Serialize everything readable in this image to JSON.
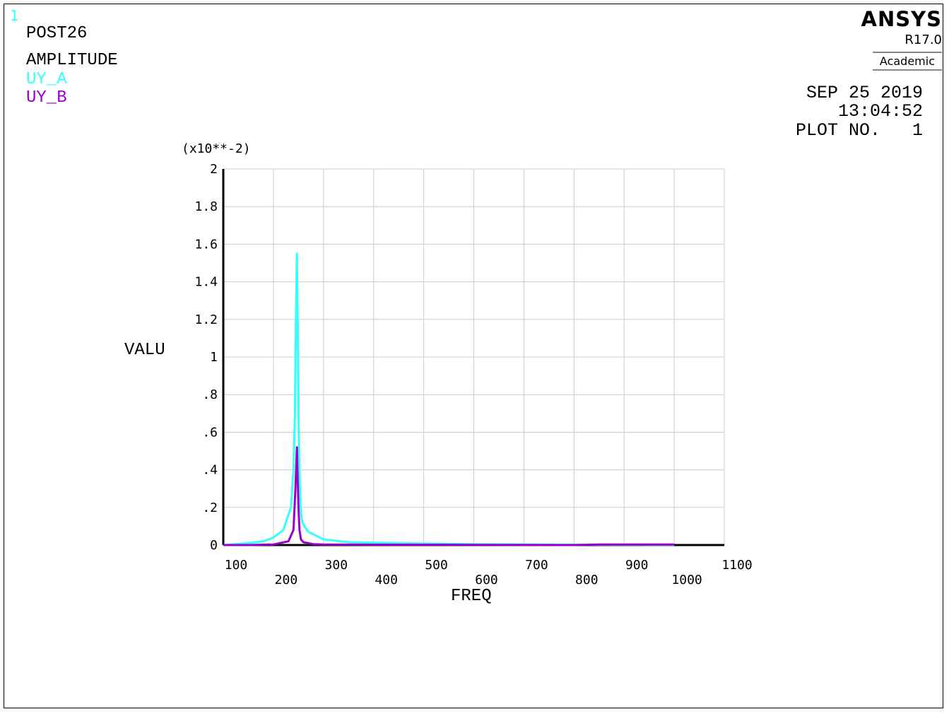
{
  "window": {
    "number": "1"
  },
  "header": {
    "processor": "POST26",
    "variable_type": "AMPLITUDE"
  },
  "brand": {
    "name": "ANSYS",
    "release": "R17.0",
    "edition": "Academic"
  },
  "stamp": {
    "date": "SEP 25 2019",
    "time": "13:04:52",
    "plot_no": "PLOT NO.   1"
  },
  "colors": {
    "series_a": "#33ffff",
    "series_b": "#9900cc",
    "grid": "#cccccc",
    "axis": "#000000"
  },
  "chart_data": {
    "type": "line",
    "multiplier": "(x10**-2)",
    "xlabel": "FREQ",
    "ylabel": "VALU",
    "xlim": [
      100,
      1100
    ],
    "ylim": [
      0,
      2
    ],
    "grid": true,
    "x_ticks": [
      "100",
      "200",
      "300",
      "400",
      "500",
      "600",
      "700",
      "800",
      "900",
      "1000",
      "1100"
    ],
    "y_ticks": [
      "0",
      ".2",
      ".4",
      ".6",
      ".8",
      "1",
      "1.2",
      "1.4",
      "1.6",
      "1.8",
      "2"
    ],
    "series": [
      {
        "name": "UY_A",
        "color": "#33ffff",
        "x": [
          100,
          150,
          180,
          200,
          220,
          235,
          240,
          243,
          245,
          247,
          249,
          250,
          252,
          254,
          256,
          258,
          262,
          270,
          300,
          350,
          450,
          600,
          800,
          1000
        ],
        "y": [
          0.0,
          0.01,
          0.02,
          0.04,
          0.08,
          0.2,
          0.4,
          0.7,
          1.2,
          1.55,
          1.1,
          0.7,
          0.38,
          0.22,
          0.15,
          0.12,
          0.1,
          0.07,
          0.03,
          0.015,
          0.01,
          0.005,
          0.002,
          0.001
        ]
      },
      {
        "name": "UY_B",
        "color": "#9900cc",
        "x": [
          100,
          150,
          200,
          230,
          240,
          244,
          246,
          247,
          248,
          250,
          252,
          255,
          260,
          280,
          300,
          400,
          600,
          800,
          850,
          1000
        ],
        "y": [
          0.0,
          0.0,
          0.003,
          0.02,
          0.08,
          0.3,
          0.45,
          0.52,
          0.4,
          0.2,
          0.08,
          0.03,
          0.015,
          0.005,
          0.003,
          0.002,
          0.001,
          0.0,
          0.003,
          0.003
        ]
      }
    ]
  }
}
